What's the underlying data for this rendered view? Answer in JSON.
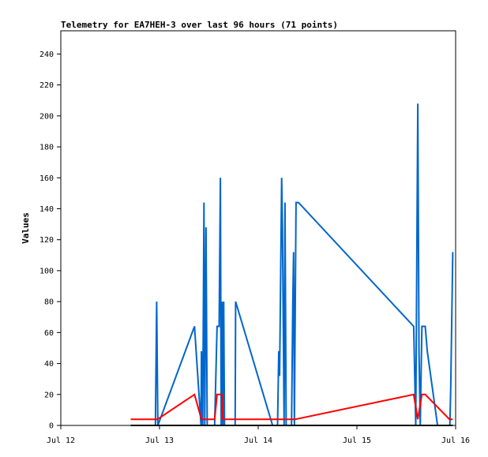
{
  "chart_data": {
    "type": "line",
    "title": "Telemetry for EA7HEH-3 over last 96 hours (71 points)",
    "xlabel": "",
    "ylabel": "Values",
    "ylim": [
      0,
      255
    ],
    "xlim": [
      0,
      96
    ],
    "x_ticks": [
      {
        "x": 0,
        "label": "Jul 12"
      },
      {
        "x": 24,
        "label": "Jul 13"
      },
      {
        "x": 48,
        "label": "Jul 14"
      },
      {
        "x": 72,
        "label": "Jul 15"
      },
      {
        "x": 96,
        "label": "Jul 16"
      }
    ],
    "y_ticks": [
      0,
      20,
      40,
      60,
      80,
      100,
      120,
      140,
      160,
      180,
      200,
      220,
      240
    ],
    "legend": "none",
    "series": [
      {
        "color": "#0066cc",
        "points": [
          [
            23.0,
            0
          ],
          [
            23.3,
            80
          ],
          [
            23.6,
            0
          ],
          [
            32.5,
            64
          ],
          [
            34.1,
            0
          ],
          [
            34.2,
            48
          ],
          [
            34.5,
            0
          ],
          [
            34.8,
            144
          ],
          [
            35.0,
            0
          ],
          [
            35.3,
            128
          ],
          [
            35.6,
            0
          ],
          [
            37.4,
            0
          ],
          [
            38.0,
            64
          ],
          [
            38.5,
            64
          ],
          [
            38.8,
            160
          ],
          [
            39.0,
            0
          ],
          [
            39.2,
            80
          ],
          [
            39.4,
            0
          ],
          [
            39.6,
            80
          ],
          [
            39.8,
            0
          ],
          [
            42.4,
            0
          ],
          [
            42.5,
            80
          ],
          [
            51.5,
            0
          ],
          [
            52.7,
            0
          ],
          [
            53.0,
            48
          ],
          [
            53.2,
            32
          ],
          [
            53.7,
            160
          ],
          [
            53.9,
            128
          ],
          [
            54.3,
            0
          ],
          [
            54.5,
            144
          ],
          [
            54.8,
            0
          ],
          [
            55.2,
            0
          ],
          [
            56.1,
            0
          ],
          [
            56.4,
            80
          ],
          [
            56.6,
            112
          ],
          [
            56.8,
            0
          ],
          [
            57.2,
            144
          ],
          [
            57.8,
            144
          ],
          [
            85.8,
            64
          ],
          [
            86.3,
            0
          ],
          [
            86.8,
            208
          ],
          [
            87.1,
            48
          ],
          [
            87.4,
            0
          ],
          [
            87.8,
            64
          ],
          [
            88.6,
            64
          ],
          [
            89.1,
            48
          ],
          [
            91.6,
            0
          ],
          [
            94.6,
            0
          ],
          [
            94.8,
            24
          ],
          [
            95.3,
            112
          ]
        ]
      },
      {
        "color": "#ff0000",
        "points": [
          [
            17.0,
            4
          ],
          [
            23.5,
            4
          ],
          [
            32.5,
            20
          ],
          [
            34.2,
            4
          ],
          [
            37.4,
            4
          ],
          [
            38.0,
            20
          ],
          [
            39.2,
            20
          ],
          [
            39.4,
            4
          ],
          [
            57.0,
            4
          ],
          [
            85.8,
            20
          ],
          [
            86.8,
            4
          ],
          [
            87.8,
            20
          ],
          [
            88.6,
            20
          ],
          [
            94.5,
            4
          ],
          [
            95.3,
            4
          ]
        ]
      },
      {
        "color": "#000000",
        "points": [
          [
            17.0,
            0
          ],
          [
            95.3,
            0
          ]
        ]
      }
    ]
  }
}
